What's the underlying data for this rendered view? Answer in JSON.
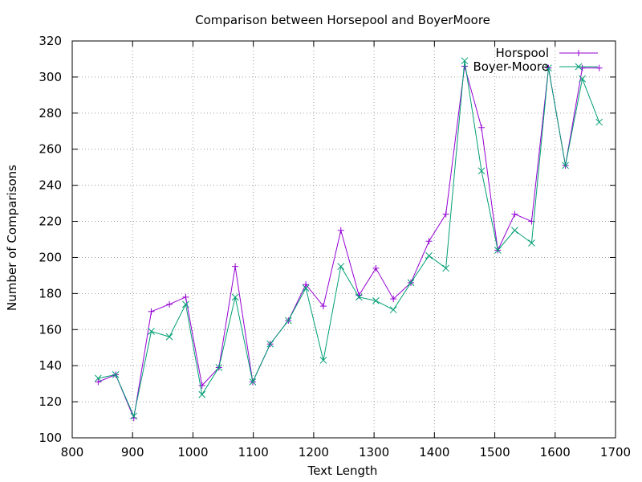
{
  "chart_data": {
    "type": "line",
    "title": "Comparison between Horsepool and BoyerMoore",
    "xlabel": "Text Length",
    "ylabel": "Number of Comparisons",
    "xlim": [
      800,
      1700
    ],
    "ylim": [
      100,
      320
    ],
    "xticks": [
      800,
      900,
      1000,
      1100,
      1200,
      1300,
      1400,
      1500,
      1600,
      1700
    ],
    "yticks": [
      100,
      120,
      140,
      160,
      180,
      200,
      220,
      240,
      260,
      280,
      300,
      320
    ],
    "grid": true,
    "legend_position": "top-right",
    "series": [
      {
        "name": "Horspool",
        "color": "#9400d3",
        "marker": "plus",
        "x": [
          843,
          872,
          902,
          931,
          961,
          988,
          1015,
          1043,
          1070,
          1099,
          1128,
          1158,
          1187,
          1216,
          1245,
          1275,
          1303,
          1332,
          1361,
          1391,
          1419,
          1450,
          1478,
          1505,
          1533,
          1561,
          1589,
          1617,
          1645,
          1673
        ],
        "y": [
          131,
          135,
          111,
          170,
          174,
          178,
          129,
          139,
          195,
          131,
          152,
          165,
          185,
          173,
          215,
          179,
          194,
          177,
          186,
          209,
          224,
          306,
          272,
          204,
          224,
          220,
          305,
          251,
          305,
          305
        ]
      },
      {
        "name": "Boyer-Moore",
        "color": "#009e73",
        "marker": "cross",
        "x": [
          843,
          872,
          902,
          931,
          961,
          988,
          1015,
          1043,
          1070,
          1099,
          1128,
          1158,
          1187,
          1216,
          1245,
          1275,
          1303,
          1332,
          1361,
          1391,
          1419,
          1450,
          1478,
          1505,
          1533,
          1561,
          1589,
          1617,
          1645,
          1673
        ],
        "y": [
          133,
          135,
          112,
          159,
          156,
          174,
          124,
          139,
          178,
          131,
          152,
          165,
          183,
          143,
          195,
          178,
          176,
          171,
          186,
          201,
          194,
          309,
          248,
          204,
          215,
          208,
          305,
          251,
          299,
          275
        ]
      }
    ]
  }
}
